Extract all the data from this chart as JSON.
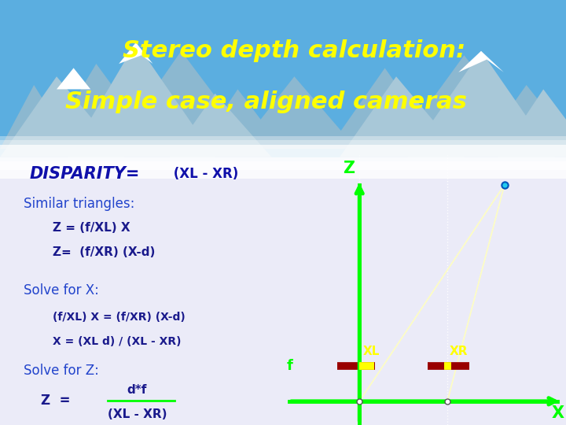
{
  "title_line1": "Stereo depth calculation:",
  "title_line2": "Simple case, aligned cameras",
  "title_color": "#FFFF00",
  "title_fontsize": 22,
  "disparity_label": "DISPARITY=",
  "disparity_formula": " (XL - XR)",
  "similar_triangles": "Similar triangles:",
  "eq1": "Z = (f/XL) X",
  "eq2": "Z=  (f/XR) (X-d)",
  "solve_x_title": "Solve for X:",
  "solve_x1": "(f/XL) X = (f/XR) (X-d)",
  "solve_x2": "X = (XL d) / (XL - XR)",
  "solve_z_title": "Solve for Z:",
  "solve_z_eq": "Z  =",
  "solve_z_num": "d*f",
  "solve_z_den": "(XL - XR)",
  "green_color": "#00FF00",
  "yellow_color": "#FFFF00",
  "dark_red_color": "#990000",
  "text_dark_blue": "#1A1A8C",
  "text_blue": "#2244CC",
  "disp_blue": "#1010AA",
  "diagram_bg": "#BBBBEE",
  "lower_bg": "#F0F0FF",
  "XL": 0.55,
  "XR": 1.55,
  "f_level": 0.42,
  "Zp3d": 2.55,
  "Xp3d": 2.2,
  "diagram_xlim": [
    -0.3,
    2.9
  ],
  "diagram_ylim": [
    -0.28,
    2.9
  ]
}
